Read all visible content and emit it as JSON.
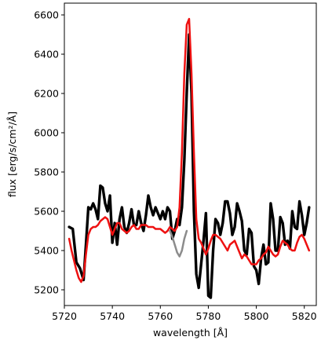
{
  "chart_data": {
    "type": "line",
    "title": "",
    "xlabel": "wavelength [Å]",
    "ylabel": "flux [erg/s/cm²/Å]",
    "xlim": [
      5720,
      5825
    ],
    "ylim": [
      5120,
      6660
    ],
    "x_ticks": [
      5720,
      5740,
      5760,
      5780,
      5800,
      5820
    ],
    "y_ticks": [
      5200,
      5400,
      5600,
      5800,
      6000,
      6200,
      6400,
      6600
    ],
    "grid": false,
    "series": [
      {
        "color": "#000000",
        "width": 3.4,
        "x": [
          5722,
          5723.5,
          5725,
          5726.5,
          5728,
          5729,
          5730,
          5731,
          5732,
          5733,
          5734,
          5735,
          5736,
          5737,
          5738,
          5739,
          5740,
          5741,
          5742,
          5743,
          5744,
          5745,
          5746,
          5747,
          5748,
          5749,
          5750,
          5751,
          5752,
          5753,
          5754,
          5755,
          5756,
          5757,
          5758,
          5759,
          5760,
          5761,
          5762,
          5763,
          5764,
          5765,
          5766,
          5767,
          5768,
          5769,
          5770,
          5771,
          5772,
          5773,
          5774,
          5775,
          5776,
          5777,
          5778,
          5779,
          5780,
          5781,
          5782,
          5783,
          5784,
          5785,
          5786,
          5787,
          5788,
          5789,
          5790,
          5791,
          5792,
          5793,
          5794,
          5795,
          5796,
          5797,
          5798,
          5799,
          5800,
          5801,
          5802,
          5803,
          5804,
          5805,
          5806,
          5807,
          5808,
          5809,
          5810,
          5811,
          5812,
          5813,
          5814,
          5815,
          5816,
          5817,
          5818,
          5819,
          5820,
          5821,
          5822
        ],
        "y": [
          5520,
          5510,
          5340,
          5310,
          5250,
          5430,
          5620,
          5610,
          5640,
          5610,
          5560,
          5730,
          5720,
          5640,
          5600,
          5680,
          5440,
          5540,
          5430,
          5560,
          5620,
          5520,
          5490,
          5540,
          5610,
          5530,
          5530,
          5600,
          5540,
          5500,
          5580,
          5680,
          5620,
          5580,
          5620,
          5590,
          5560,
          5600,
          5560,
          5620,
          5600,
          5460,
          5500,
          5560,
          5530,
          5620,
          5860,
          6200,
          6500,
          6200,
          5600,
          5280,
          5210,
          5330,
          5450,
          5590,
          5170,
          5160,
          5400,
          5560,
          5540,
          5480,
          5540,
          5650,
          5650,
          5590,
          5480,
          5520,
          5640,
          5600,
          5550,
          5400,
          5380,
          5510,
          5490,
          5320,
          5300,
          5230,
          5360,
          5430,
          5330,
          5340,
          5640,
          5560,
          5400,
          5400,
          5570,
          5540,
          5430,
          5450,
          5410,
          5600,
          5520,
          5510,
          5650,
          5580,
          5480,
          5540,
          5620
        ]
      },
      {
        "color": "#8c8c8c",
        "width": 2.5,
        "x": [
          5764,
          5765,
          5766,
          5767,
          5768,
          5769,
          5770,
          5771
        ],
        "y": [
          5500,
          5470,
          5430,
          5390,
          5370,
          5400,
          5460,
          5500
        ]
      },
      {
        "color": "#ee1111",
        "width": 2.5,
        "x": [
          5722,
          5723,
          5724,
          5725,
          5726,
          5727,
          5728,
          5729,
          5730,
          5731,
          5732,
          5733,
          5734,
          5735,
          5736,
          5737,
          5738,
          5739,
          5740,
          5741,
          5742,
          5743,
          5744,
          5745,
          5746,
          5747,
          5748,
          5749,
          5750,
          5751,
          5752,
          5753,
          5754,
          5755,
          5756,
          5757,
          5758,
          5759,
          5760,
          5761,
          5762,
          5763,
          5764,
          5765,
          5766,
          5767,
          5768,
          5769,
          5770,
          5771,
          5772,
          5773,
          5774,
          5775,
          5776,
          5777,
          5778,
          5779,
          5780,
          5781,
          5782,
          5783,
          5784,
          5785,
          5786,
          5787,
          5788,
          5789,
          5790,
          5791,
          5792,
          5793,
          5794,
          5795,
          5796,
          5797,
          5798,
          5799,
          5800,
          5801,
          5802,
          5803,
          5804,
          5805,
          5806,
          5807,
          5808,
          5809,
          5810,
          5811,
          5812,
          5813,
          5814,
          5815,
          5816,
          5817,
          5818,
          5819,
          5820,
          5821,
          5822
        ],
        "y": [
          5460,
          5400,
          5350,
          5300,
          5260,
          5240,
          5270,
          5380,
          5480,
          5510,
          5520,
          5520,
          5530,
          5550,
          5560,
          5570,
          5560,
          5520,
          5480,
          5510,
          5540,
          5540,
          5510,
          5500,
          5490,
          5500,
          5520,
          5530,
          5510,
          5510,
          5530,
          5530,
          5530,
          5520,
          5520,
          5520,
          5510,
          5510,
          5510,
          5500,
          5490,
          5500,
          5520,
          5510,
          5500,
          5520,
          5620,
          5900,
          6300,
          6550,
          6580,
          6300,
          5900,
          5560,
          5460,
          5440,
          5410,
          5380,
          5410,
          5450,
          5480,
          5480,
          5470,
          5460,
          5440,
          5420,
          5400,
          5430,
          5440,
          5450,
          5420,
          5390,
          5360,
          5380,
          5370,
          5350,
          5330,
          5330,
          5330,
          5350,
          5360,
          5380,
          5390,
          5420,
          5400,
          5380,
          5370,
          5380,
          5420,
          5450,
          5440,
          5430,
          5410,
          5400,
          5400,
          5440,
          5470,
          5480,
          5460,
          5430,
          5400
        ]
      }
    ]
  }
}
